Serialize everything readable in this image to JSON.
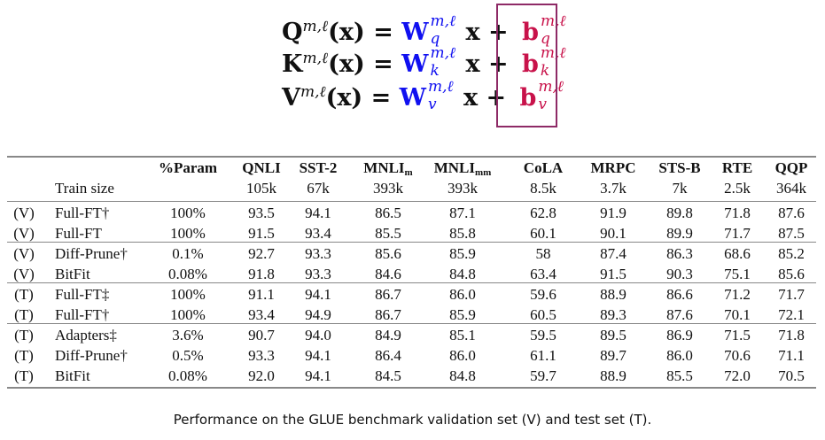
{
  "equations": [
    {
      "lhs": "Q",
      "sup": "m,ℓ",
      "mid": "(x) = ",
      "w": "W",
      "w_sub": "q",
      "x": "x + ",
      "b": "b",
      "b_sub": "q"
    },
    {
      "lhs": "K",
      "sup": "m,ℓ",
      "mid": "(x) = ",
      "w": "W",
      "w_sub": "k",
      "x": "x + ",
      "b": "b",
      "b_sub": "k"
    },
    {
      "lhs": "V",
      "sup": "m,ℓ",
      "mid": "(x) = ",
      "w": "W",
      "w_sub": "v",
      "x": "x + ",
      "b": "b",
      "b_sub": "v"
    }
  ],
  "colors": {
    "weights": "#1010f0",
    "bias": "#c8124a",
    "box": "#8e2a66"
  },
  "table": {
    "headers": [
      {
        "label": "%Param"
      },
      {
        "label": "QNLI",
        "train": "105k"
      },
      {
        "label": "SST-2",
        "train": "67k"
      },
      {
        "label": "MNLI",
        "sub": "m",
        "train": "393k"
      },
      {
        "label": "MNLI",
        "sub": "mm",
        "train": "393k"
      },
      {
        "label": "CoLA",
        "train": "8.5k"
      },
      {
        "label": "MRPC",
        "train": "3.7k"
      },
      {
        "label": "STS-B",
        "train": "7k"
      },
      {
        "label": "RTE",
        "train": "2.5k"
      },
      {
        "label": "QQP",
        "train": "364k"
      }
    ],
    "train_size_label": "Train size",
    "rows": [
      {
        "set": "(V)",
        "method": "Full-FT†",
        "values": [
          "100%",
          "93.5",
          "94.1",
          "86.5",
          "87.1",
          "62.8",
          "91.9",
          "89.8",
          "71.8",
          "87.6"
        ]
      },
      {
        "set": "(V)",
        "method": "Full-FT",
        "values": [
          "100%",
          "91.5",
          "93.4",
          "85.5",
          "85.8",
          "60.1",
          "90.1",
          "89.9",
          "71.7",
          "87.5"
        ]
      },
      {
        "set": "(V)",
        "method": "Diff-Prune†",
        "values": [
          "0.1%",
          "92.7",
          "93.3",
          "85.6",
          "85.9",
          "58",
          "87.4",
          "86.3",
          "68.6",
          "85.2"
        ]
      },
      {
        "set": "(V)",
        "method": "BitFit",
        "values": [
          "0.08%",
          "91.8",
          "93.3",
          "84.6",
          "84.8",
          "63.4",
          "91.5",
          "90.3",
          "75.1",
          "85.6"
        ]
      },
      {
        "set": "(T)",
        "method": "Full-FT‡",
        "values": [
          "100%",
          "91.1",
          "94.1",
          "86.7",
          "86.0",
          "59.6",
          "88.9",
          "86.6",
          "71.2",
          "71.7"
        ]
      },
      {
        "set": "(T)",
        "method": "Full-FT†",
        "values": [
          "100%",
          "93.4",
          "94.9",
          "86.7",
          "85.9",
          "60.5",
          "89.3",
          "87.6",
          "70.1",
          "72.1"
        ]
      },
      {
        "set": "(T)",
        "method": "Adapters‡",
        "values": [
          "3.6%",
          "90.7",
          "94.0",
          "84.9",
          "85.1",
          "59.5",
          "89.5",
          "86.9",
          "71.5",
          "71.8"
        ]
      },
      {
        "set": "(T)",
        "method": "Diff-Prune†",
        "values": [
          "0.5%",
          "93.3",
          "94.1",
          "86.4",
          "86.0",
          "61.1",
          "89.7",
          "86.0",
          "70.6",
          "71.1"
        ]
      },
      {
        "set": "(T)",
        "method": "BitFit",
        "values": [
          "0.08%",
          "92.0",
          "94.1",
          "84.5",
          "84.8",
          "59.7",
          "88.9",
          "85.5",
          "72.0",
          "70.5"
        ]
      }
    ]
  },
  "caption": "Performance on the GLUE benchmark validation set (V) and test set (T)."
}
